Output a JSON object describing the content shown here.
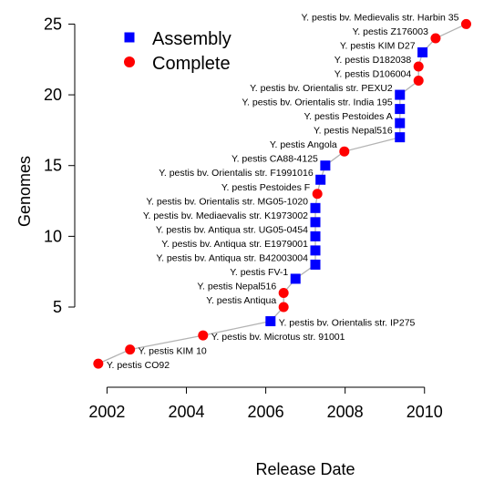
{
  "chart_data": {
    "type": "scatter",
    "xlabel": "Release Date",
    "ylabel": "Genomes",
    "xlim": [
      2001.6,
      2011.2
    ],
    "ylim": [
      0.3,
      25.8
    ],
    "x_ticks": [
      2002,
      2004,
      2006,
      2008,
      2010
    ],
    "y_ticks": [
      5,
      10,
      15,
      20,
      25
    ],
    "grid": false,
    "legend_position": "top-left",
    "legend": [
      {
        "name": "Assembly",
        "marker": "square",
        "color": "#0000ff"
      },
      {
        "name": "Complete",
        "marker": "circle",
        "color": "#ff0000"
      }
    ],
    "line_color": "#b3b3b3",
    "points": [
      {
        "x": 2001.78,
        "y": 1,
        "label": "Y. pestis CO92",
        "kind": "Complete"
      },
      {
        "x": 2002.58,
        "y": 2,
        "label": "Y. pestis KIM 10",
        "kind": "Complete"
      },
      {
        "x": 2004.42,
        "y": 3,
        "label": "Y. pestis bv. Microtus str. 91001",
        "kind": "Complete"
      },
      {
        "x": 2006.12,
        "y": 4,
        "label": "Y. pestis bv. Orientalis str. IP275",
        "kind": "Assembly"
      },
      {
        "x": 2006.45,
        "y": 5,
        "label": "Y. pestis Antiqua",
        "kind": "Complete"
      },
      {
        "x": 2006.45,
        "y": 6,
        "label": "Y. pestis Nepal516",
        "kind": "Complete"
      },
      {
        "x": 2006.75,
        "y": 7,
        "label": "Y. pestis FV-1",
        "kind": "Assembly"
      },
      {
        "x": 2007.25,
        "y": 8,
        "label": "Y. pestis bv. Antiqua str. B42003004",
        "kind": "Assembly"
      },
      {
        "x": 2007.25,
        "y": 9,
        "label": "Y. pestis bv. Antiqua str. E1979001",
        "kind": "Assembly"
      },
      {
        "x": 2007.25,
        "y": 10,
        "label": "Y. pestis bv. Antiqua str. UG05-0454",
        "kind": "Assembly"
      },
      {
        "x": 2007.25,
        "y": 11,
        "label": "Y. pestis bv. Mediaevalis str. K1973002",
        "kind": "Assembly"
      },
      {
        "x": 2007.25,
        "y": 12,
        "label": "Y. pestis bv. Orientalis str. MG05-1020",
        "kind": "Assembly"
      },
      {
        "x": 2007.3,
        "y": 13,
        "label": "Y. pestis Pestoides F",
        "kind": "Complete"
      },
      {
        "x": 2007.38,
        "y": 14,
        "label": "Y. pestis bv. Orientalis str. F1991016",
        "kind": "Assembly"
      },
      {
        "x": 2007.5,
        "y": 15,
        "label": "Y. pestis CA88-4125",
        "kind": "Assembly"
      },
      {
        "x": 2007.98,
        "y": 16,
        "label": "Y. pestis Angola",
        "kind": "Complete"
      },
      {
        "x": 2009.38,
        "y": 17,
        "label": "Y. pestis Nepal516",
        "kind": "Assembly"
      },
      {
        "x": 2009.38,
        "y": 18,
        "label": "Y. pestis Pestoides A",
        "kind": "Assembly"
      },
      {
        "x": 2009.38,
        "y": 19,
        "label": "Y. pestis bv. Orientalis str. India 195",
        "kind": "Assembly"
      },
      {
        "x": 2009.38,
        "y": 20,
        "label": "Y. pestis bv. Orientalis str. PEXU2",
        "kind": "Assembly"
      },
      {
        "x": 2009.85,
        "y": 21,
        "label": "Y. pestis D106004",
        "kind": "Complete"
      },
      {
        "x": 2009.85,
        "y": 22,
        "label": "Y. pestis D182038",
        "kind": "Complete"
      },
      {
        "x": 2009.95,
        "y": 23,
        "label": "Y. pestis KIM D27",
        "kind": "Assembly"
      },
      {
        "x": 2010.28,
        "y": 24,
        "label": "Y. pestis Z176003",
        "kind": "Complete"
      },
      {
        "x": 2011.05,
        "y": 25,
        "label": "Y. pestis bv. Medievalis str. Harbin 35",
        "kind": "Complete"
      }
    ]
  }
}
